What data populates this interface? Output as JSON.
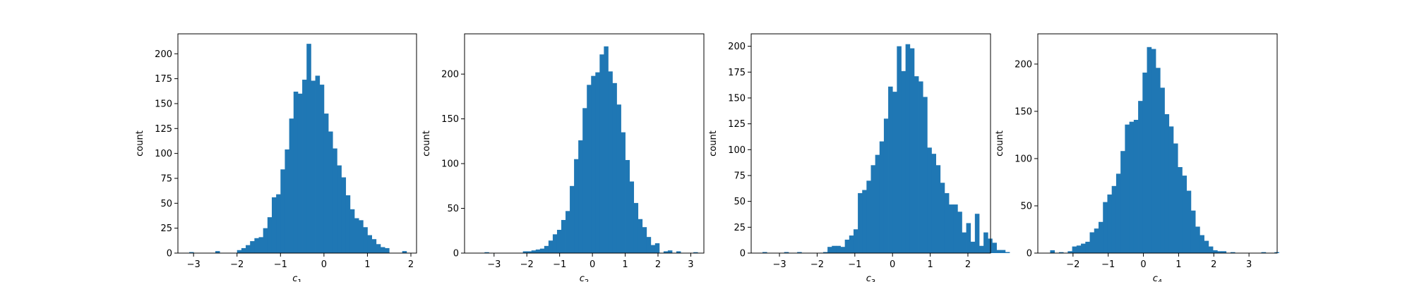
{
  "chart_data": [
    {
      "type": "bar",
      "subtype": "histogram",
      "xlabel": "c",
      "xlabel_subscript": "1",
      "ylabel": "count",
      "xlim": [
        -3.36,
        2.13
      ],
      "ylim": [
        0,
        220
      ],
      "xticks": [
        -3,
        -2,
        -1,
        0,
        1,
        2
      ],
      "yticks": [
        0,
        25,
        50,
        75,
        100,
        125,
        150,
        175,
        200
      ],
      "bin_start": -3.1,
      "bin_width": 0.1,
      "values": [
        1,
        0,
        0,
        0,
        0,
        0,
        2,
        0,
        0,
        0,
        0,
        3,
        5,
        8,
        12,
        15,
        16,
        25,
        36,
        56,
        59,
        84,
        104,
        135,
        162,
        160,
        174,
        210,
        173,
        178,
        169,
        140,
        122,
        105,
        88,
        76,
        58,
        44,
        35,
        33,
        26,
        18,
        14,
        9,
        6,
        5,
        0,
        0,
        0,
        2
      ],
      "color": "#1f77b4"
    },
    {
      "type": "bar",
      "subtype": "histogram",
      "xlabel": "c",
      "xlabel_subscript": "2",
      "ylabel": "count",
      "xlim": [
        -3.9,
        3.4
      ],
      "ylim": [
        0,
        245
      ],
      "xticks": [
        -3,
        -2,
        -1,
        0,
        1,
        2,
        3
      ],
      "yticks": [
        0,
        50,
        100,
        150,
        200
      ],
      "bin_start": -3.55,
      "bin_width": 0.13,
      "values": [
        0,
        0,
        1,
        0,
        0,
        0,
        0,
        0,
        0,
        0,
        0,
        2,
        2,
        3,
        4,
        5,
        8,
        14,
        21,
        26,
        37,
        47,
        75,
        105,
        126,
        162,
        188,
        198,
        202,
        222,
        231,
        203,
        190,
        166,
        135,
        104,
        80,
        56,
        38,
        29,
        18,
        9,
        11,
        0,
        2,
        3,
        0,
        2,
        0,
        0,
        0,
        1
      ],
      "color": "#1f77b4"
    },
    {
      "type": "bar",
      "subtype": "histogram",
      "xlabel": "c",
      "xlabel_subscript": "3",
      "ylabel": "count",
      "xlim": [
        -3.75,
        2.6
      ],
      "ylim": [
        0,
        212
      ],
      "xticks": [
        -3,
        -2,
        -1,
        0,
        1,
        2
      ],
      "yticks": [
        0,
        25,
        50,
        75,
        100,
        125,
        150,
        175,
        200
      ],
      "bin_start": -3.45,
      "bin_width": 0.115,
      "values": [
        1,
        0,
        0,
        0,
        0,
        1,
        0,
        0,
        1,
        0,
        0,
        0,
        0,
        0,
        1,
        6,
        7,
        7,
        6,
        13,
        17,
        23,
        58,
        61,
        70,
        85,
        95,
        108,
        130,
        161,
        156,
        200,
        176,
        202,
        198,
        171,
        166,
        151,
        102,
        96,
        85,
        68,
        58,
        47,
        47,
        40,
        20,
        29,
        11,
        38,
        7,
        20,
        14,
        10,
        3,
        3,
        1
      ],
      "color": "#1f77b4"
    },
    {
      "type": "bar",
      "subtype": "histogram",
      "xlabel": "c",
      "xlabel_subscript": "4",
      "ylabel": "count",
      "xlim": [
        -3.0,
        3.8
      ],
      "ylim": [
        0,
        232
      ],
      "xticks": [
        -2,
        -1,
        0,
        1,
        2,
        3
      ],
      "yticks": [
        0,
        50,
        100,
        150,
        200
      ],
      "bin_start": -2.65,
      "bin_width": 0.125,
      "values": [
        3,
        0,
        1,
        0,
        2,
        7,
        8,
        10,
        12,
        22,
        26,
        33,
        54,
        62,
        71,
        84,
        108,
        136,
        139,
        141,
        161,
        191,
        218,
        216,
        196,
        175,
        147,
        134,
        116,
        91,
        82,
        66,
        45,
        28,
        19,
        13,
        7,
        3,
        2,
        2,
        0,
        1,
        0,
        0,
        0,
        0,
        0,
        0,
        1,
        0,
        0,
        1
      ],
      "color": "#1f77b4"
    }
  ]
}
